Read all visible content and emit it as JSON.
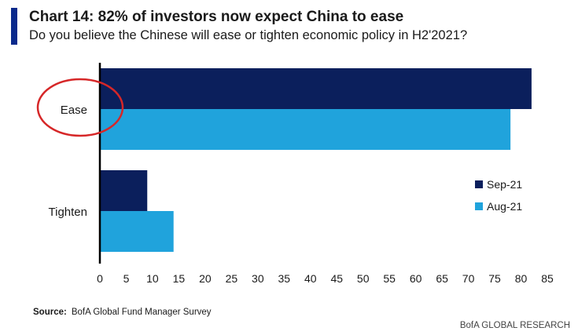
{
  "header": {
    "accent_color": "#0a2a8c",
    "title": "Chart 14: 82% of investors now expect China to ease",
    "subtitle": "Do you believe the Chinese will ease or tighten economic policy in H2'2021?"
  },
  "chart_data": {
    "type": "bar",
    "orientation": "horizontal",
    "categories": [
      "Ease",
      "Tighten"
    ],
    "series": [
      {
        "name": "Sep-21",
        "color": "#0b1f5c",
        "values": [
          82,
          9
        ]
      },
      {
        "name": "Aug-21",
        "color": "#20a3dc",
        "values": [
          78,
          14
        ]
      }
    ],
    "xlim": [
      0,
      85
    ],
    "xticks": [
      0,
      5,
      10,
      15,
      20,
      25,
      30,
      35,
      40,
      45,
      50,
      55,
      60,
      65,
      70,
      75,
      80,
      85
    ],
    "grid": false,
    "legend_position": "right",
    "annotation": {
      "type": "circle",
      "target": "Ease",
      "color": "#d62728"
    }
  },
  "footer": {
    "source_label": "Source:",
    "source_text": "BofA Global Fund Manager Survey",
    "brand": "BofA GLOBAL RESEARCH"
  }
}
